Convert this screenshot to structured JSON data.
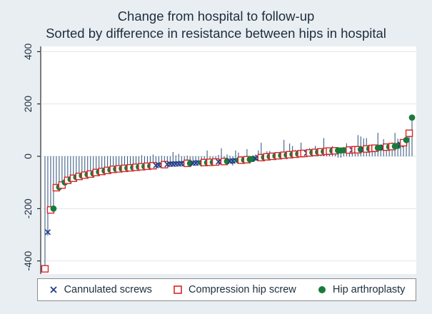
{
  "chart_data": {
    "type": "scatter",
    "title": "Change from hospital to follow-up",
    "subtitle": "Sorted by difference in resistance between hips in hospital",
    "xlabel": "",
    "ylabel": "",
    "ylim": [
      -450,
      420
    ],
    "yticks": [
      -400,
      -200,
      0,
      200,
      400
    ],
    "ytick_labels": [
      "-400",
      "-200",
      "0",
      "200",
      "400"
    ],
    "legend_position": "bottom",
    "colors": {
      "cannulated": "#1f3c87",
      "compression": "#d62728",
      "arthroplasty": "#1a7a3a",
      "spike": "#2b4f7a"
    },
    "legend": [
      {
        "key": "cannulated",
        "label": "Cannulated screws"
      },
      {
        "key": "compression",
        "label": "Compression hip screw"
      },
      {
        "key": "arthroplasty",
        "label": "Hip arthroplasty"
      }
    ],
    "x": [
      1,
      2,
      3,
      4,
      5,
      6,
      7,
      8,
      9,
      10,
      11,
      12,
      13,
      14,
      15,
      16,
      17,
      18,
      19,
      20,
      21,
      22,
      23,
      24,
      25,
      26,
      27,
      28,
      29,
      30,
      31,
      32,
      33,
      34,
      35,
      36,
      37,
      38,
      39,
      40,
      41,
      42,
      43,
      44,
      45,
      46,
      47,
      48,
      49,
      50,
      51,
      52,
      53,
      54,
      55,
      56,
      57,
      58,
      59,
      60,
      61,
      62,
      63,
      64,
      65,
      66,
      67,
      68,
      69,
      70,
      71,
      72,
      73,
      74,
      75,
      76,
      77,
      78,
      79,
      80,
      81,
      82,
      83,
      84,
      85,
      86,
      87,
      88,
      89,
      90,
      91,
      92,
      93,
      94,
      95,
      96,
      97,
      98,
      99,
      100,
      101,
      102,
      103,
      104,
      105,
      106,
      107,
      108,
      109,
      110,
      111,
      112,
      113,
      114,
      115,
      116,
      117,
      118,
      119,
      120,
      121,
      122,
      123,
      124,
      125,
      126,
      127,
      128,
      129,
      130
    ],
    "y": [
      -430,
      -290,
      -205,
      -200,
      -120,
      -118,
      -110,
      -100,
      -92,
      -88,
      -84,
      -80,
      -77,
      -74,
      -72,
      -70,
      -68,
      -66,
      -62,
      -60,
      -58,
      -56,
      -54,
      -52,
      -50,
      -49,
      -48,
      -47,
      -46,
      -45,
      -44,
      -43,
      -42,
      -41,
      -40,
      -39,
      -38,
      -37,
      -36,
      -35,
      -34,
      -33,
      -32,
      -31,
      -30,
      -30,
      -29,
      -29,
      -28,
      -28,
      -27,
      -27,
      -26,
      -26,
      -25,
      -25,
      -24,
      -24,
      -23,
      -23,
      -22,
      -21,
      -21,
      -20,
      -19,
      -19,
      -18,
      -17,
      -16,
      -15,
      -14,
      -13,
      -12,
      -10,
      -8,
      -6,
      -5,
      -4,
      -2,
      -1,
      0,
      1,
      2,
      3,
      4,
      5,
      6,
      7,
      8,
      9,
      10,
      11,
      12,
      13,
      14,
      15,
      16,
      17,
      18,
      19,
      20,
      21,
      21,
      22,
      22,
      23,
      23,
      24,
      24,
      25,
      25,
      26,
      27,
      28,
      29,
      30,
      31,
      32,
      33,
      34,
      35,
      36,
      37,
      38,
      40,
      45,
      52,
      62,
      88,
      148
    ],
    "group": [
      "compression",
      "cannulated",
      "compression",
      "arthroplasty",
      "compression",
      "arthroplasty",
      "compression",
      "arthroplasty",
      "compression",
      "arthroplasty",
      "compression",
      "arthroplasty",
      "compression",
      "arthroplasty",
      "compression",
      "arthroplasty",
      "compression",
      "arthroplasty",
      "compression",
      "arthroplasty",
      "compression",
      "arthroplasty",
      "compression",
      "arthroplasty",
      "compression",
      "arthroplasty",
      "compression",
      "arthroplasty",
      "compression",
      "arthroplasty",
      "compression",
      "arthroplasty",
      "compression",
      "arthroplasty",
      "compression",
      "arthroplasty",
      "compression",
      "arthroplasty",
      "compression",
      "cannulated",
      "cannulated",
      "cannulated",
      "compression",
      "cannulated",
      "cannulated",
      "cannulated",
      "cannulated",
      "cannulated",
      "cannulated",
      "cannulated",
      "compression",
      "arthroplasty",
      "cannulated",
      "cannulated",
      "cannulated",
      "arthroplasty",
      "compression",
      "arthroplasty",
      "compression",
      "arthroplasty",
      "compression",
      "cannulated",
      "cannulated",
      "compression",
      "arthroplasty",
      "cannulated",
      "cannulated",
      "cannulated",
      "arthroplasty",
      "compression",
      "arthroplasty",
      "compression",
      "arthroplasty",
      "arthroplasty",
      "cannulated",
      "cannulated",
      "compression",
      "arthroplasty",
      "compression",
      "arthroplasty",
      "compression",
      "arthroplasty",
      "compression",
      "arthroplasty",
      "compression",
      "arthroplasty",
      "compression",
      "arthroplasty",
      "compression",
      "arthroplasty",
      "compression",
      "compression",
      "cannulated",
      "compression",
      "arthroplasty",
      "compression",
      "arthroplasty",
      "compression",
      "arthroplasty",
      "compression",
      "compression",
      "arthroplasty",
      "compression",
      "arthroplasty",
      "arthroplasty",
      "arthroplasty",
      "arthroplasty",
      "compression",
      "cannulated",
      "compression",
      "compression",
      "arthroplasty",
      "cannulated",
      "compression",
      "arthroplasty",
      "compression",
      "compression",
      "arthroplasty",
      "arthroplasty",
      "cannulated",
      "compression",
      "arthroplasty",
      "compression",
      "arthroplasty",
      "arthroplasty",
      "cannulated",
      "compression",
      "arthroplasty",
      "compression",
      "arthroplasty"
    ],
    "spike_from": 0
  }
}
